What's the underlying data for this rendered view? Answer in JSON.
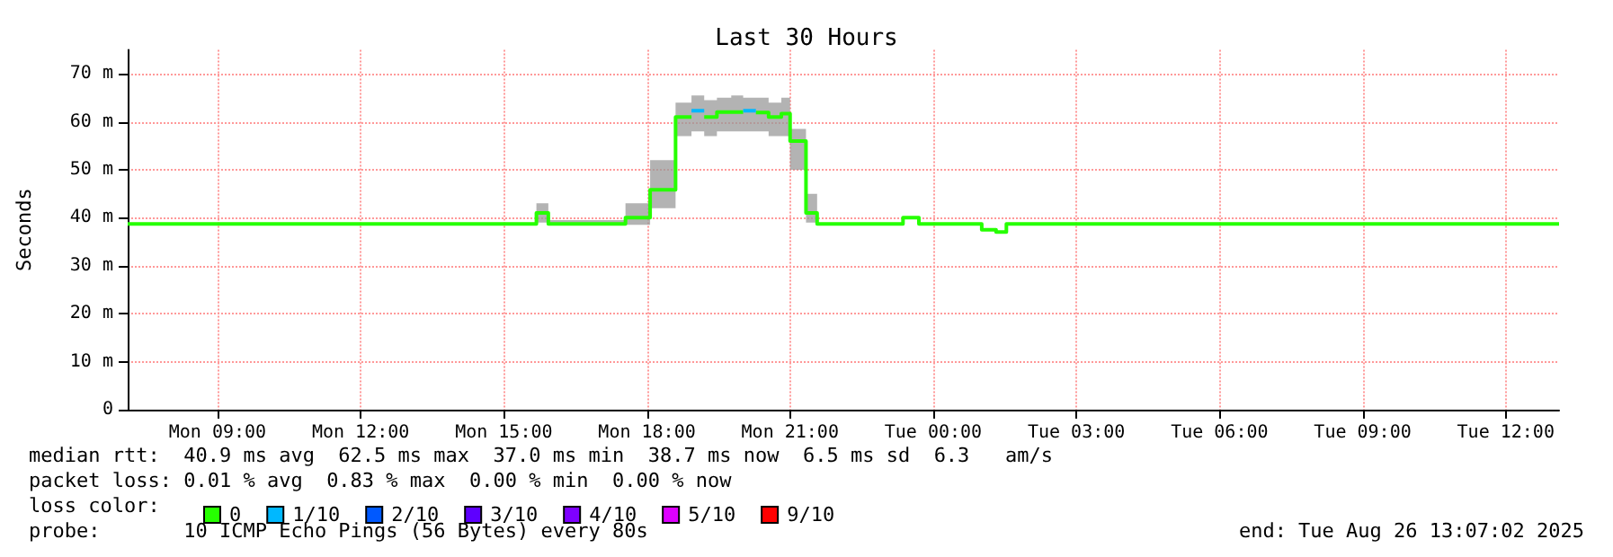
{
  "chart_data": {
    "type": "line",
    "title": "Last 30 Hours",
    "ylabel": "Seconds",
    "legend_title": "loss color:",
    "legend": "bottom left",
    "xlim": [
      "2025-08-25T07:07",
      "2025-08-26T13:07"
    ],
    "xticks": [
      {
        "value": "2025-08-25T09:00",
        "label": "Mon 09:00"
      },
      {
        "value": "2025-08-25T12:00",
        "label": "Mon 12:00"
      },
      {
        "value": "2025-08-25T15:00",
        "label": "Mon 15:00"
      },
      {
        "value": "2025-08-25T18:00",
        "label": "Mon 18:00"
      },
      {
        "value": "2025-08-25T21:00",
        "label": "Mon 21:00"
      },
      {
        "value": "2025-08-26T00:00",
        "label": "Tue 00:00"
      },
      {
        "value": "2025-08-26T03:00",
        "label": "Tue 03:00"
      },
      {
        "value": "2025-08-26T06:00",
        "label": "Tue 06:00"
      },
      {
        "value": "2025-08-26T09:00",
        "label": "Tue 09:00"
      },
      {
        "value": "2025-08-26T12:00",
        "label": "Tue 12:00"
      }
    ],
    "ylim": [
      0,
      75
    ],
    "yticks": [
      0,
      {
        "value": 10,
        "label": "10 m"
      },
      {
        "value": 20,
        "label": "20 m"
      },
      {
        "value": 30,
        "label": "30 m"
      },
      {
        "value": 40,
        "label": "40 m"
      },
      {
        "value": 50,
        "label": "50 m"
      },
      {
        "value": 60,
        "label": "60 m"
      },
      {
        "value": 70,
        "label": "70 m"
      }
    ],
    "grid": true,
    "series": [
      {
        "name": "0",
        "color": "#26ff00",
        "x": [
          "2025-08-25T07:07",
          "2025-08-25T15:41",
          "2025-08-25T15:41",
          "2025-08-25T15:56",
          "2025-08-25T15:56",
          "2025-08-25T17:33",
          "2025-08-25T17:33",
          "2025-08-25T18:04",
          "2025-08-25T18:04",
          "2025-08-25T18:36",
          "2025-08-25T18:36",
          "2025-08-25T18:56",
          "2025-08-25T18:56",
          "2025-08-25T19:12",
          "2025-08-25T19:12",
          "2025-08-25T19:28",
          "2025-08-25T19:28",
          "2025-08-25T19:46",
          "2025-08-25T19:46",
          "2025-08-25T20:01",
          "2025-08-25T20:01",
          "2025-08-25T20:17",
          "2025-08-25T20:17",
          "2025-08-25T20:33",
          "2025-08-25T20:33",
          "2025-08-25T20:49",
          "2025-08-25T20:49",
          "2025-08-25T21:00",
          "2025-08-25T21:00",
          "2025-08-25T21:20",
          "2025-08-25T21:20",
          "2025-08-25T21:34",
          "2025-08-25T21:34",
          "2025-08-25T23:22",
          "2025-08-25T23:22",
          "2025-08-25T23:42",
          "2025-08-25T23:42",
          "2025-08-26T01:01",
          "2025-08-26T01:01",
          "2025-08-26T01:19",
          "2025-08-26T01:19",
          "2025-08-26T01:32",
          "2025-08-26T01:32",
          "2025-08-26T13:07"
        ],
        "values": [
          38.7,
          38.7,
          41.0,
          41.0,
          38.7,
          38.7,
          40.0,
          40.0,
          45.8,
          45.8,
          61.0,
          61.0,
          null,
          null,
          61.0,
          61.0,
          62.0,
          62.0,
          62.0,
          62.0,
          null,
          null,
          61.9,
          61.9,
          61.0,
          61.0,
          61.7,
          61.7,
          56.0,
          56.0,
          41.0,
          41.0,
          38.7,
          38.7,
          40.0,
          40.0,
          38.7,
          38.7,
          37.5,
          37.5,
          37.0,
          37.0,
          38.7,
          38.7
        ],
        "lower": [
          38.7,
          38.7,
          39,
          39,
          38.5,
          38.5,
          38.5,
          38.5,
          42,
          42,
          57,
          57,
          58,
          58,
          57,
          57,
          58,
          58,
          58,
          58,
          58,
          58,
          58,
          58,
          57,
          57,
          57,
          57,
          50,
          50,
          39,
          39,
          38.7,
          38.7,
          40.0,
          40.0,
          38.7,
          38.7,
          37.5,
          37.5,
          37.0,
          37.0,
          38.7,
          38.7
        ],
        "upper": [
          38.7,
          38.7,
          43,
          43,
          39.5,
          39.5,
          43,
          43,
          52,
          52,
          64,
          64,
          65.5,
          65.5,
          64.5,
          64.5,
          65,
          65,
          65.5,
          65.5,
          65,
          65,
          65,
          65,
          64,
          64,
          65,
          65,
          58.5,
          58.5,
          45,
          45,
          38.7,
          38.7,
          40.0,
          40.0,
          38.7,
          38.7,
          37.5,
          37.5,
          37.0,
          37.0,
          38.7,
          38.7
        ]
      },
      {
        "name": "1/10",
        "color": "#00b8ff",
        "x": [
          "2025-08-25T18:56",
          "2025-08-25T19:12",
          "2025-08-25T19:36",
          "2025-08-25T20:01",
          "2025-08-25T20:17"
        ],
        "values": [
          62.3,
          62.3,
          null,
          62.3,
          62.3
        ]
      },
      {
        "name": "2/10",
        "color": "#0059ff"
      },
      {
        "name": "3/10",
        "color": "#5e00ff"
      },
      {
        "name": "4/10",
        "color": "#7e00ff"
      },
      {
        "name": "5/10",
        "color": "#dd00ff"
      },
      {
        "name": "9/10",
        "color": "#ff0000"
      }
    ],
    "annotations": [
      "median rtt:  40.9 ms avg  62.5 ms max  37.0 ms min  38.7 ms now  6.5 ms sd  6.3   am/s",
      "packet loss: 0.01 % avg  0.83 % max  0.00 % min  0.00 % now",
      "probe:       10 ICMP Echo Pings (56 Bytes) every 80s",
      "end: Tue Aug 26 13:07:02 2025"
    ]
  }
}
